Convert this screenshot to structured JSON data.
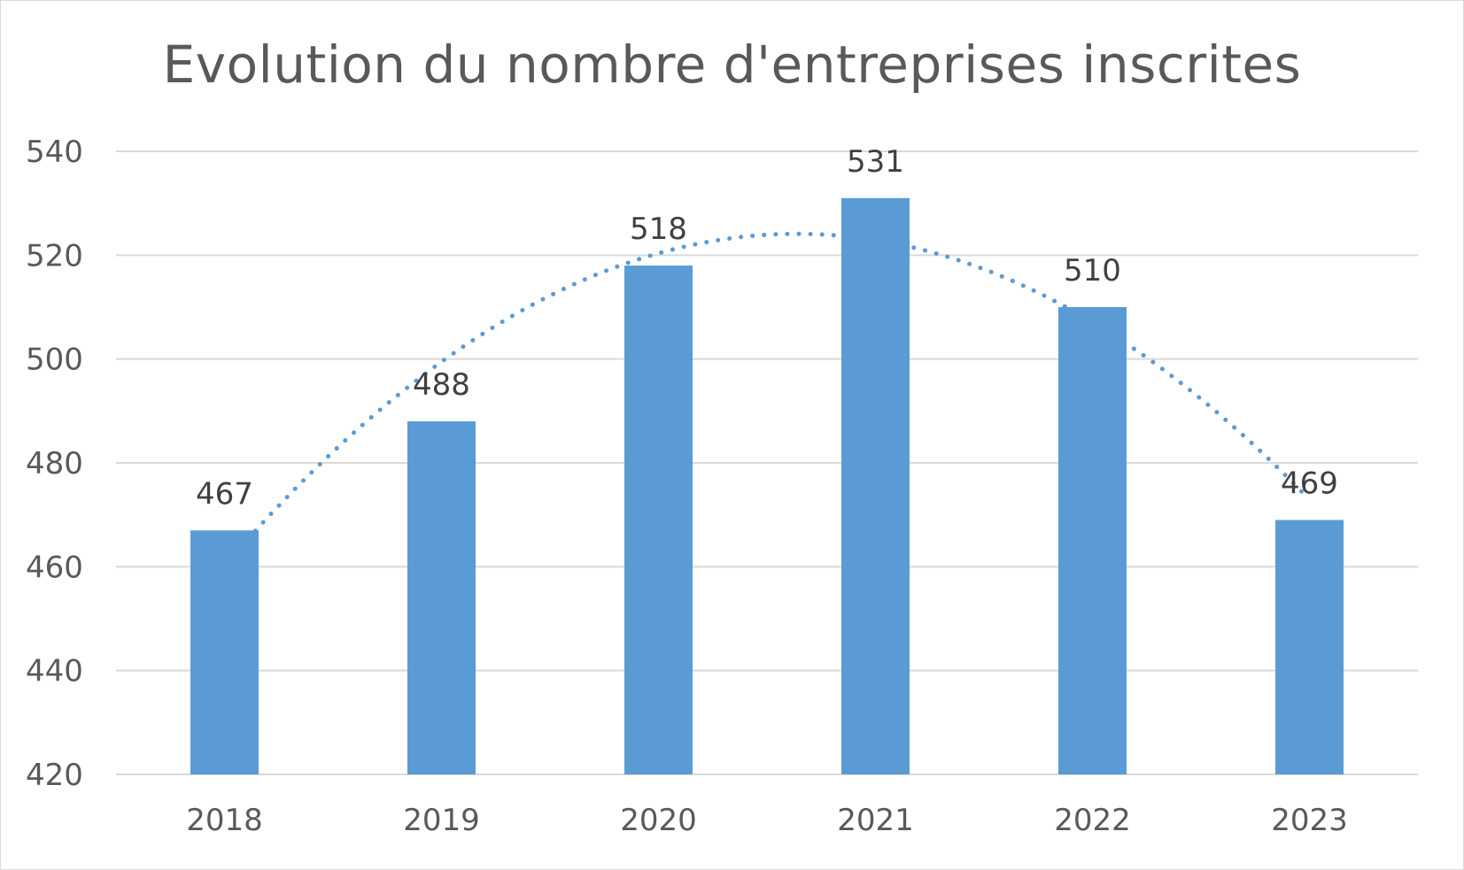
{
  "chart_data": {
    "type": "bar",
    "title": "Evolution du nombre d'entreprises inscrites",
    "categories": [
      "2018",
      "2019",
      "2020",
      "2021",
      "2022",
      "2023"
    ],
    "values": [
      467,
      488,
      518,
      531,
      510,
      469
    ],
    "data_labels": [
      "467",
      "488",
      "518",
      "531",
      "510",
      "469"
    ],
    "ylim": [
      420,
      540
    ],
    "yticks": [
      "420",
      "440",
      "460",
      "480",
      "500",
      "520",
      "540"
    ],
    "grid": true,
    "legend": "none",
    "trendline": {
      "type": "polynomial",
      "style": "dotted",
      "degree": 2
    },
    "colors": {
      "bar": "#5b9bd5",
      "trendline": "#5b9bd5",
      "grid": "#d9d9d9",
      "axis_text": "#595959",
      "label_text": "#404040"
    }
  }
}
